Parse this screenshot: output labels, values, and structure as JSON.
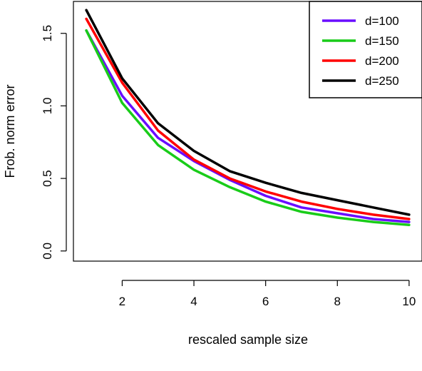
{
  "chart_data": {
    "type": "line",
    "title": "",
    "xlabel": "rescaled sample size",
    "ylabel": "Frob. norm error",
    "x": [
      1,
      2,
      3,
      4,
      5,
      6,
      7,
      8,
      9,
      10
    ],
    "xlim": [
      0.64,
      10.36
    ],
    "ylim": [
      -0.07,
      1.72
    ],
    "xticks": [
      2,
      4,
      6,
      8,
      10
    ],
    "yticks": [
      0.0,
      0.5,
      1.0,
      1.5
    ],
    "xtick_labels": [
      "2",
      "4",
      "6",
      "8",
      "10"
    ],
    "ytick_labels": [
      "0.0",
      "0.5",
      "1.0",
      "1.5"
    ],
    "grid": false,
    "legend_position": "top-right",
    "series": [
      {
        "name": "d=100",
        "color": "#6a0dff",
        "values": [
          1.52,
          1.07,
          0.78,
          0.62,
          0.49,
          0.38,
          0.3,
          0.26,
          0.22,
          0.2
        ]
      },
      {
        "name": "d=150",
        "color": "#19cc19",
        "values": [
          1.52,
          1.02,
          0.73,
          0.56,
          0.44,
          0.34,
          0.27,
          0.23,
          0.2,
          0.18
        ]
      },
      {
        "name": "d=200",
        "color": "#ff0000",
        "values": [
          1.6,
          1.16,
          0.83,
          0.63,
          0.5,
          0.41,
          0.34,
          0.29,
          0.25,
          0.22
        ]
      },
      {
        "name": "d=250",
        "color": "#000000",
        "values": [
          1.66,
          1.19,
          0.88,
          0.69,
          0.55,
          0.47,
          0.4,
          0.35,
          0.3,
          0.25
        ]
      }
    ]
  }
}
